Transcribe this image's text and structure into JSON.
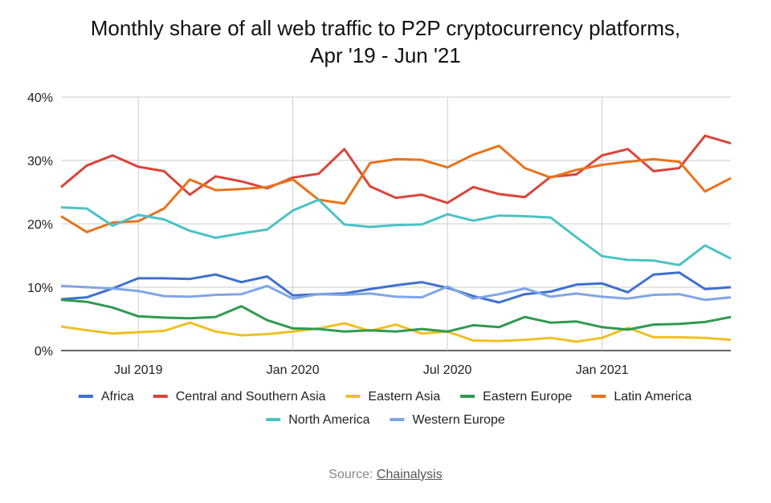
{
  "chart_data": {
    "type": "line",
    "title_line1": "Monthly share of all web traffic to P2P cryptocurrency platforms,",
    "title_line2": "Apr '19 - Jun '21",
    "x": [
      "Apr 2019",
      "May 2019",
      "Jun 2019",
      "Jul 2019",
      "Aug 2019",
      "Sep 2019",
      "Oct 2019",
      "Nov 2019",
      "Dec 2019",
      "Jan 2020",
      "Feb 2020",
      "Mar 2020",
      "Apr 2020",
      "May 2020",
      "Jun 2020",
      "Jul 2020",
      "Aug 2020",
      "Sep 2020",
      "Oct 2020",
      "Nov 2020",
      "Dec 2020",
      "Jan 2021",
      "Feb 2021",
      "Mar 2021",
      "Apr 2021",
      "May 2021",
      "Jun 2021"
    ],
    "x_ticks": [
      {
        "index": 3,
        "label": "Jul 2019"
      },
      {
        "index": 9,
        "label": "Jan 2020"
      },
      {
        "index": 15,
        "label": "Jul 2020"
      },
      {
        "index": 21,
        "label": "Jan 2021"
      }
    ],
    "y_ticks": [
      {
        "value": 0,
        "label": "0%"
      },
      {
        "value": 10,
        "label": "10%"
      },
      {
        "value": 20,
        "label": "20%"
      },
      {
        "value": 30,
        "label": "30%"
      },
      {
        "value": 40,
        "label": "40%"
      }
    ],
    "ylim": [
      0,
      40
    ],
    "grid": true,
    "legend_position": "bottom",
    "series": [
      {
        "name": "Africa",
        "color": "#3f6fd0",
        "values": [
          8.1,
          8.4,
          9.8,
          11.4,
          11.4,
          11.3,
          12.0,
          10.8,
          11.7,
          8.7,
          8.9,
          9.0,
          9.7,
          10.3,
          10.8,
          9.9,
          8.6,
          7.6,
          8.9,
          9.3,
          10.4,
          10.6,
          9.2,
          12.0,
          12.3,
          9.7,
          10.0
        ]
      },
      {
        "name": "Central and Southern Asia",
        "color": "#d9453a",
        "values": [
          25.8,
          29.2,
          30.8,
          29.0,
          28.3,
          24.6,
          27.5,
          26.7,
          25.6,
          27.3,
          27.9,
          31.8,
          25.9,
          24.1,
          24.6,
          23.3,
          25.8,
          24.7,
          24.2,
          27.4,
          27.8,
          30.8,
          31.8,
          28.3,
          28.8,
          33.9,
          32.7
        ]
      },
      {
        "name": "Eastern Asia",
        "color": "#f0c022",
        "values": [
          3.8,
          3.2,
          2.7,
          2.9,
          3.1,
          4.4,
          3.0,
          2.4,
          2.6,
          3.0,
          3.5,
          4.3,
          3.1,
          4.1,
          2.7,
          3.0,
          1.6,
          1.5,
          1.7,
          2.0,
          1.4,
          2.0,
          3.6,
          2.1,
          2.1,
          2.0,
          1.7
        ]
      },
      {
        "name": "Eastern Europe",
        "color": "#2f9a4f",
        "values": [
          8.0,
          7.7,
          6.8,
          5.4,
          5.2,
          5.1,
          5.3,
          7.0,
          4.8,
          3.5,
          3.4,
          3.0,
          3.2,
          3.0,
          3.4,
          3.0,
          4.0,
          3.7,
          5.3,
          4.4,
          4.6,
          3.7,
          3.3,
          4.1,
          4.2,
          4.5,
          5.3
        ]
      },
      {
        "name": "Latin America",
        "color": "#e8731c",
        "values": [
          21.2,
          18.7,
          20.2,
          20.4,
          22.4,
          27.0,
          25.3,
          25.5,
          25.8,
          27.0,
          23.8,
          23.2,
          29.6,
          30.2,
          30.1,
          28.9,
          30.9,
          32.3,
          28.8,
          27.3,
          28.5,
          29.3,
          29.8,
          30.2,
          29.8,
          25.1,
          27.2
        ]
      },
      {
        "name": "North America",
        "color": "#4cc2c4",
        "values": [
          22.6,
          22.4,
          19.7,
          21.4,
          20.7,
          18.9,
          17.8,
          18.5,
          19.1,
          22.1,
          23.8,
          19.9,
          19.5,
          19.8,
          19.9,
          21.5,
          20.5,
          21.3,
          21.2,
          21.0,
          17.9,
          14.9,
          14.3,
          14.2,
          13.5,
          16.6,
          14.5
        ]
      },
      {
        "name": "Western Europe",
        "color": "#7fa6e6",
        "values": [
          10.2,
          10.0,
          9.8,
          9.4,
          8.6,
          8.5,
          8.8,
          8.9,
          10.2,
          8.2,
          8.9,
          8.8,
          9.0,
          8.5,
          8.4,
          10.1,
          8.2,
          8.9,
          9.8,
          8.5,
          9.0,
          8.5,
          8.2,
          8.8,
          8.9,
          8.0,
          8.4
        ]
      }
    ]
  },
  "source": {
    "label": "Source:",
    "link": "Chainalysis"
  }
}
